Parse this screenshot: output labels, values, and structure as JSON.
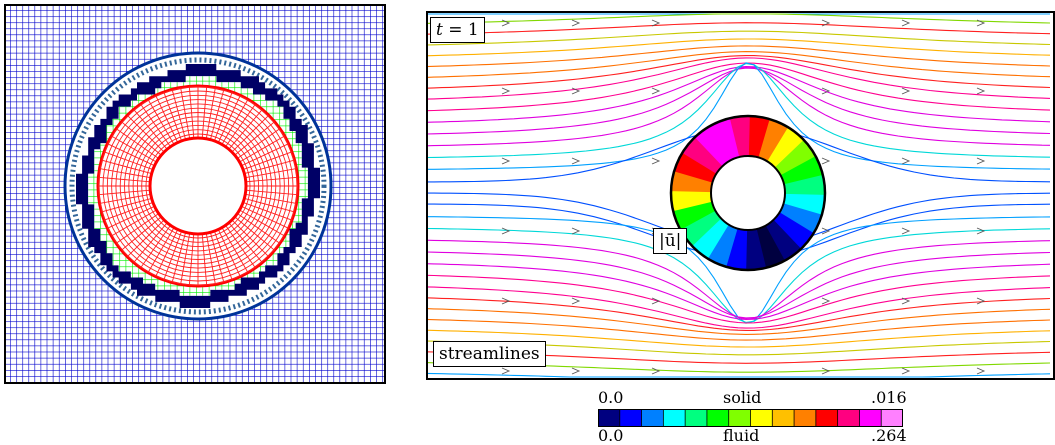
{
  "labels": {
    "time_t": "t",
    "time_eq": " = 1",
    "velocity": "|ū|",
    "streamlines": "streamlines"
  },
  "colorbar": {
    "solid_min": "0.0",
    "solid_label": "solid",
    "solid_max": ".016",
    "fluid_min": "0.0",
    "fluid_label": "fluid",
    "fluid_max": ".264",
    "colors": [
      "#000080",
      "#0000ff",
      "#0080ff",
      "#00ffff",
      "#00ff80",
      "#00ff00",
      "#80ff00",
      "#ffff00",
      "#ffc000",
      "#ff8000",
      "#ff0000",
      "#ff0080",
      "#ff00ff",
      "#ff80ff"
    ]
  },
  "colors": {
    "fluid_mesh": "#0000cc",
    "interface_mesh": "#00ff00",
    "solid_mesh": "#ff0000",
    "boundary_band": "#000066"
  }
}
